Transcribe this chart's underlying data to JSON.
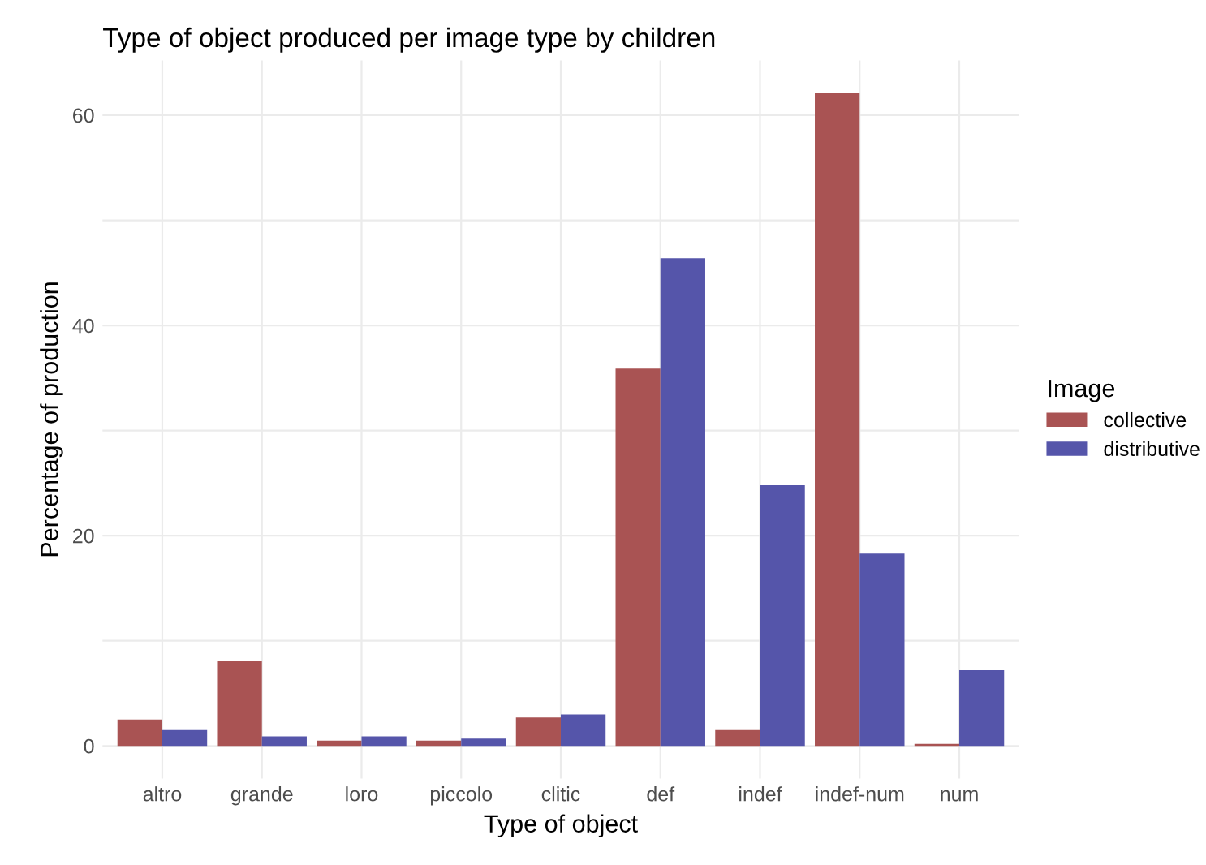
{
  "chart_data": {
    "type": "bar",
    "title": "Type of object produced per image type by children",
    "xlabel": "Type of object",
    "ylabel": "Percentage of production",
    "legend_title": "Image",
    "legend": "right",
    "categories": [
      "altro",
      "grande",
      "loro",
      "piccolo",
      "clitic",
      "def",
      "indef",
      "indef-num",
      "num"
    ],
    "series": [
      {
        "name": "collective",
        "color": "#a95353",
        "values": [
          2.5,
          8.1,
          0.5,
          0.5,
          2.7,
          35.9,
          1.5,
          62.1,
          0.2
        ]
      },
      {
        "name": "distributive",
        "color": "#5555aa",
        "values": [
          1.5,
          0.9,
          0.9,
          0.7,
          3.0,
          46.4,
          24.8,
          18.3,
          7.2
        ]
      }
    ],
    "ylim": [
      -3.1,
      65.2
    ],
    "yticks": [
      0,
      {
        "value": 10,
        "label": null
      },
      20,
      {
        "value": 30,
        "label": null
      },
      40,
      {
        "value": 50,
        "label": null
      },
      60
    ],
    "grid": true
  }
}
